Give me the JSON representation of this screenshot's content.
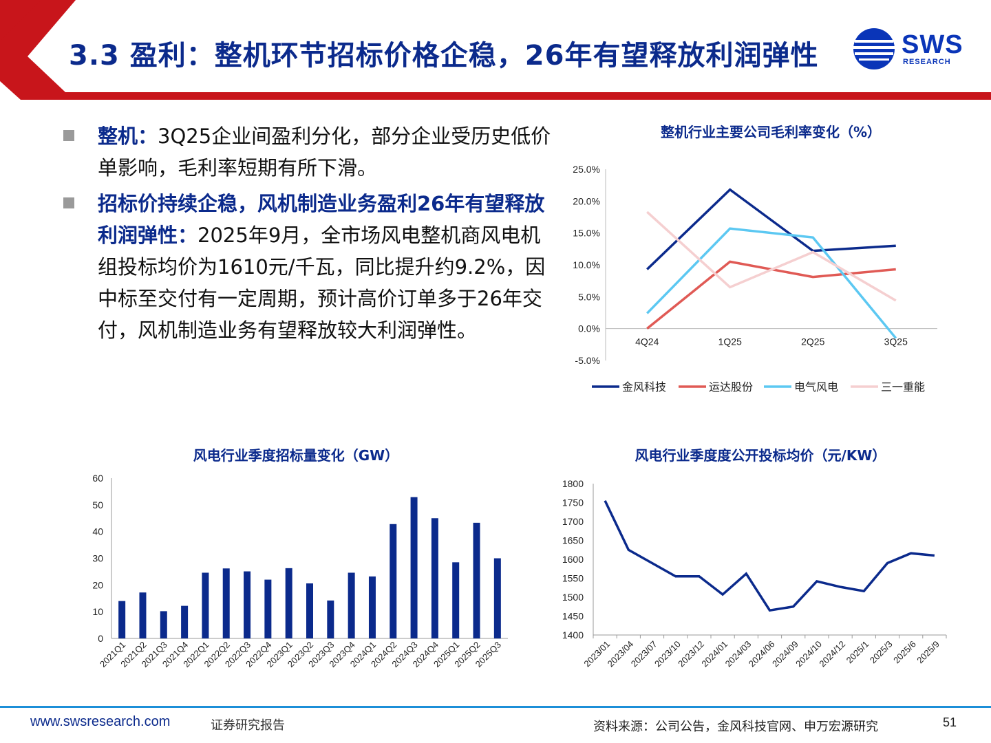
{
  "title": "3.3 盈利：整机环节招标价格企稳，26年有望释放利润弹性",
  "logo": {
    "name": "SWS",
    "sub": "RESEARCH",
    "color": "#0a35b8"
  },
  "colors": {
    "accent_red": "#c8151b",
    "title_blue": "#0b2a8c",
    "footer_line": "#1c8fd8"
  },
  "bullets": [
    {
      "heading": "整机：",
      "text": "3Q25企业间盈利分化，部分企业受历史低价单影响，毛利率短期有所下滑。"
    },
    {
      "heading": "招标价持续企稳，风机制造业务盈利26年有望释放利润弹性：",
      "text": "2025年9月，全市场风电整机商风电机组投标均价为1610元/千瓦，同比提升约9.2%，因中标至交付有一定周期，预计高价订单多于26年交付，风机制造业务有望释放较大利润弹性。"
    }
  ],
  "chart_data": [
    {
      "type": "line",
      "title": "整机行业主要公司毛利率变化（%）",
      "categories": [
        "4Q24",
        "1Q25",
        "2Q25",
        "3Q25"
      ],
      "ylim": [
        -5,
        25
      ],
      "yticks": [
        "25.0%",
        "20.0%",
        "15.0%",
        "10.0%",
        "5.0%",
        "0.0%",
        "-5.0%"
      ],
      "legend_position": "bottom",
      "series": [
        {
          "name": "金风科技",
          "color": "#0b2a8c",
          "values": [
            9.3,
            21.8,
            12.2,
            13.0
          ]
        },
        {
          "name": "运达股份",
          "color": "#e05a55",
          "values": [
            0.0,
            10.5,
            8.1,
            9.3
          ]
        },
        {
          "name": "电气风电",
          "color": "#5cc8f2",
          "values": [
            2.4,
            15.7,
            14.3,
            -1.5
          ]
        },
        {
          "name": "三一重能",
          "color": "#f5cfd0",
          "values": [
            18.3,
            6.5,
            12.0,
            4.4
          ]
        }
      ]
    },
    {
      "type": "bar",
      "title": "风电行业季度招标量变化（GW）",
      "categories": [
        "2021Q1",
        "2021Q2",
        "2021Q3",
        "2021Q4",
        "2022Q1",
        "2022Q2",
        "2022Q3",
        "2022Q4",
        "2023Q1",
        "2023Q2",
        "2023Q3",
        "2023Q4",
        "2024Q1",
        "2024Q2",
        "2024Q3",
        "2024Q4",
        "2025Q1",
        "2025Q2",
        "2025Q3"
      ],
      "values": [
        14.0,
        17.2,
        10.2,
        12.2,
        24.6,
        26.2,
        25.1,
        22.0,
        26.3,
        20.6,
        14.2,
        24.6,
        23.2,
        42.8,
        52.9,
        45.0,
        28.5,
        43.3,
        30.0
      ],
      "ylim": [
        0,
        60
      ],
      "yticks": [
        "0",
        "10",
        "20",
        "30",
        "40",
        "50",
        "60"
      ],
      "color": "#0b2a8c"
    },
    {
      "type": "line",
      "title": "风电行业季度度公开投标均价（元/KW）",
      "categories": [
        "2023/01",
        "2023/04",
        "2023/07",
        "2023/10",
        "2023/12",
        "2024/01",
        "2024/03",
        "2024/06",
        "2024/09",
        "2024/10",
        "2024/12",
        "2025/1",
        "2025/3",
        "2025/6",
        "2025/9"
      ],
      "values": [
        1755,
        1625,
        1590,
        1555,
        1555,
        1507,
        1562,
        1465,
        1475,
        1542,
        1527,
        1516,
        1590,
        1616,
        1610
      ],
      "ylim": [
        1400,
        1800
      ],
      "yticks": [
        "1800",
        "1750",
        "1700",
        "1650",
        "1600",
        "1550",
        "1500",
        "1450",
        "1400"
      ],
      "color": "#0b2a8c"
    }
  ],
  "footer": {
    "url": "www.swsresearch.com",
    "report": "证券研究报告",
    "source": "资料来源：公司公告，金风科技官网、申万宏源研究",
    "page": "51"
  }
}
